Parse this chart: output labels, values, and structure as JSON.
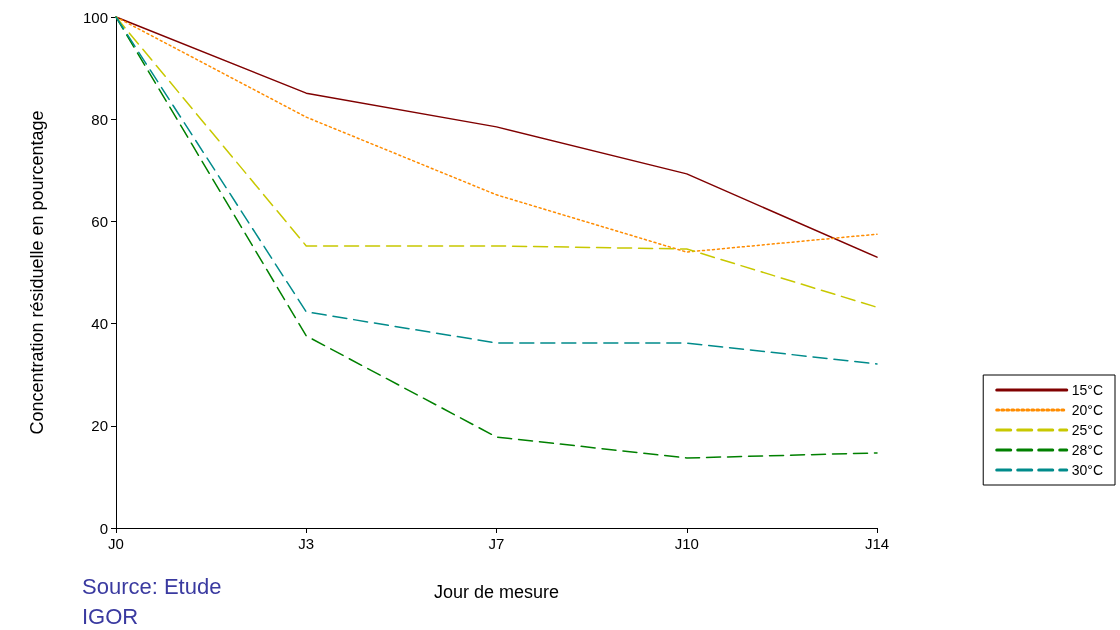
{
  "chart_data": {
    "type": "line",
    "xlabel": "Jour de mesure",
    "ylabel": "Concentration résiduelle en pourcentage",
    "categories": [
      "J0",
      "J3",
      "J7",
      "J10",
      "J14"
    ],
    "series": [
      {
        "name": "15°C",
        "color": "#800000",
        "line_style": "solid",
        "values": [
          100,
          85.1,
          78.5,
          69.3,
          53
        ]
      },
      {
        "name": "20°C",
        "color": "#ff8c00",
        "line_style": "dotted",
        "values": [
          100,
          80.4,
          65.2,
          54,
          57.5
        ]
      },
      {
        "name": "25°C",
        "color": "#c8c800",
        "line_style": "dashed",
        "values": [
          100,
          55.2,
          55.2,
          54.6,
          43.2
        ]
      },
      {
        "name": "28°C",
        "color": "#008000",
        "line_style": "dashed",
        "values": [
          100,
          37.6,
          17.8,
          13.7,
          14.7
        ]
      },
      {
        "name": "30°C",
        "color": "#008b8b",
        "line_style": "dashed",
        "values": [
          100,
          42.3,
          36.2,
          36.2,
          32.1
        ]
      }
    ],
    "ylim": [
      0,
      100
    ],
    "yticks": [
      0,
      20,
      40,
      60,
      80,
      100
    ],
    "grid": false,
    "legend": "right",
    "marker": "none",
    "annotations": [
      "Source: Etude IGOR"
    ]
  }
}
